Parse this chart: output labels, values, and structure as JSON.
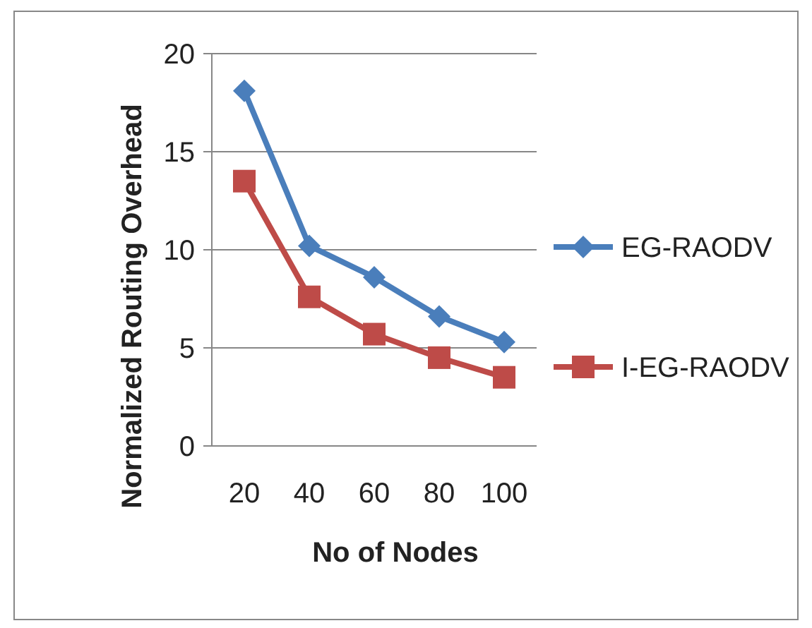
{
  "chart_data": {
    "type": "line",
    "xlabel": "No of Nodes",
    "ylabel": "Normalized Routing  Overhead",
    "categories": [
      "20",
      "40",
      "60",
      "80",
      "100"
    ],
    "series": [
      {
        "name": "EG-RAODV",
        "color": "#4a7ebb",
        "values": [
          18.1,
          10.2,
          8.6,
          6.6,
          5.3
        ],
        "marker": "diamond"
      },
      {
        "name": "I-EG-RAODV",
        "color": "#be4b48",
        "values": [
          13.5,
          7.6,
          5.7,
          4.5,
          3.5
        ],
        "marker": "square"
      }
    ],
    "ylim": [
      0,
      20
    ],
    "yticks": [
      0,
      5,
      10,
      15,
      20
    ],
    "grid": "y",
    "legend": "right",
    "line_style": "solid"
  }
}
